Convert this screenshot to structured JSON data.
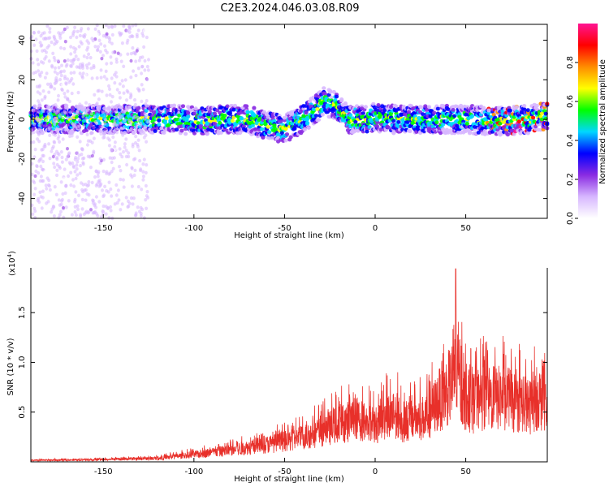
{
  "figure": {
    "title": "C2E3.2024.046.03.08.R09"
  },
  "chart_data": [
    {
      "type": "heatmap",
      "xlabel": "Height of straight line (km)",
      "ylabel": "Frequency (Hz)",
      "xlim": [
        -190,
        95
      ],
      "ylim": [
        -50,
        48
      ],
      "x_ticks": [
        -150,
        -100,
        -50,
        0,
        50
      ],
      "y_ticks": [
        40,
        20,
        0,
        -20,
        -40
      ],
      "centre_line": {
        "x": [
          -190,
          -170,
          -150,
          -130,
          -110,
          -95,
          -85,
          -70,
          -60,
          -50,
          -40,
          -32,
          -28,
          -22,
          -15,
          -5,
          0,
          10,
          30,
          50,
          70,
          85,
          95
        ],
        "y": [
          0,
          0,
          0,
          0,
          0,
          -1,
          0,
          0,
          -3,
          -5,
          0,
          6,
          9,
          7,
          0,
          0,
          1,
          0,
          0,
          0,
          -1,
          0,
          2
        ]
      },
      "noise_region": [
        -190,
        -125
      ],
      "colorbar": {
        "label": "Normalized spectral amplitude",
        "range": [
          0.0,
          1.0
        ],
        "ticks": [
          "0.0",
          "0.2",
          "0.4",
          "0.6",
          "0.8"
        ],
        "colors": [
          "#ffffff",
          "#d7b7ff",
          "#8a2be2",
          "#0000ff",
          "#00d7ff",
          "#00ff00",
          "#ffff00",
          "#ff8c00",
          "#ff0000",
          "#ff1493"
        ]
      }
    },
    {
      "type": "line",
      "xlabel": "Height of straight line (km)",
      "ylabel": "SNR (10 * v/v)",
      "scale_note": "(x10",
      "scale_exp": "4",
      "scale_close": ")",
      "xlim": [
        -190,
        95
      ],
      "ylim": [
        0,
        1.95
      ],
      "x_ticks": [
        -150,
        -100,
        -50,
        0,
        50
      ],
      "y_ticks": [
        "1.5",
        "1.0",
        "0.5"
      ],
      "color": "#e8302a",
      "envelope": {
        "x": [
          -190,
          -150,
          -120,
          -100,
          -90,
          -80,
          -70,
          -60,
          -50,
          -40,
          -30,
          -20,
          -10,
          0,
          10,
          15,
          20,
          25,
          30,
          35,
          40,
          45,
          48,
          50,
          55,
          60,
          65,
          70,
          75,
          80,
          85,
          90,
          95
        ],
        "y": [
          0.02,
          0.03,
          0.05,
          0.1,
          0.13,
          0.16,
          0.2,
          0.24,
          0.28,
          0.34,
          0.42,
          0.52,
          0.6,
          0.5,
          0.7,
          0.55,
          0.6,
          0.6,
          0.65,
          0.85,
          1.0,
          1.2,
          1.0,
          0.85,
          0.8,
          0.9,
          0.85,
          0.9,
          0.8,
          0.85,
          0.75,
          0.9,
          0.8
        ]
      },
      "peak": {
        "x": 44.5,
        "y": 1.94
      }
    }
  ]
}
